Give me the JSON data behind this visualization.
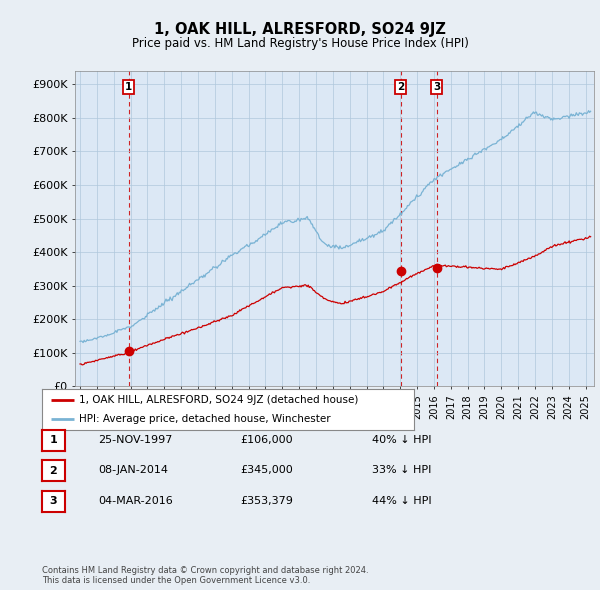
{
  "title": "1, OAK HILL, ALRESFORD, SO24 9JZ",
  "subtitle": "Price paid vs. HM Land Registry's House Price Index (HPI)",
  "ylabel_ticks": [
    "£0",
    "£100K",
    "£200K",
    "£300K",
    "£400K",
    "£500K",
    "£600K",
    "£700K",
    "£800K",
    "£900K"
  ],
  "ytick_values": [
    0,
    100000,
    200000,
    300000,
    400000,
    500000,
    600000,
    700000,
    800000,
    900000
  ],
  "ylim": [
    0,
    940000
  ],
  "xlim_start": 1994.7,
  "xlim_end": 2025.5,
  "legend_line1": "1, OAK HILL, ALRESFORD, SO24 9JZ (detached house)",
  "legend_line2": "HPI: Average price, detached house, Winchester",
  "transactions": [
    {
      "num": 1,
      "date": "25-NOV-1997",
      "price": 106000,
      "year": 1997.9,
      "pct": "40%",
      "dir": "↓"
    },
    {
      "num": 2,
      "date": "08-JAN-2014",
      "price": 345000,
      "year": 2014.03,
      "pct": "33%",
      "dir": "↓"
    },
    {
      "num": 3,
      "date": "04-MAR-2016",
      "price": 353379,
      "year": 2016.17,
      "pct": "44%",
      "dir": "↓"
    }
  ],
  "footer": "Contains HM Land Registry data © Crown copyright and database right 2024.\nThis data is licensed under the Open Government Licence v3.0.",
  "hpi_color": "#7ab3d4",
  "price_color": "#cc0000",
  "background_color": "#e8eef4",
  "plot_bg_color": "#dce8f5",
  "grid_color": "#b0c8dc",
  "transaction_line_color": "#cc0000",
  "marker_color": "#cc0000"
}
